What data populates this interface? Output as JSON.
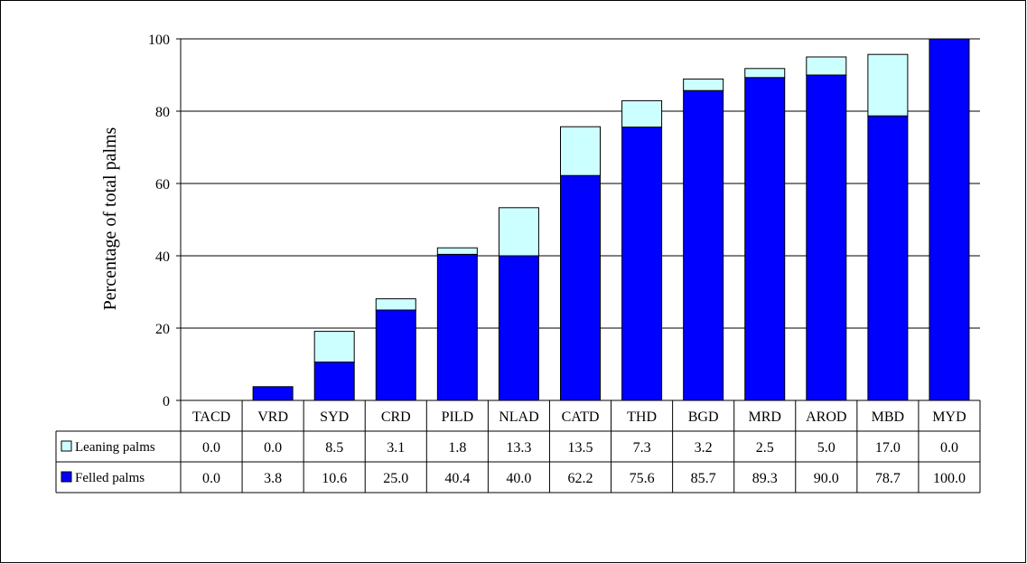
{
  "chart_data": {
    "type": "bar",
    "stacked": true,
    "title": "",
    "xlabel": "",
    "ylabel": "Percentage of total palms",
    "ylim": [
      0,
      100
    ],
    "yticks": [
      0,
      20,
      40,
      60,
      80,
      100
    ],
    "grid": true,
    "legend": "left of data table",
    "categories": [
      "TACD",
      "VRD",
      "SYD",
      "CRD",
      "PILD",
      "NLAD",
      "CATD",
      "THD",
      "BGD",
      "MRD",
      "AROD",
      "MBD",
      "MYD"
    ],
    "series": [
      {
        "name": "Felled palms",
        "color": "#0000ff",
        "values": [
          0.0,
          3.8,
          10.6,
          25.0,
          40.4,
          40.0,
          62.2,
          75.6,
          85.7,
          89.3,
          90.0,
          78.7,
          100.0
        ],
        "labels": [
          "0.0",
          "3.8",
          "10.6",
          "25.0",
          "40.4",
          "40.0",
          "62.2",
          "75.6",
          "85.7",
          "89.3",
          "90.0",
          "78.7",
          "100.0"
        ]
      },
      {
        "name": "Leaning palms",
        "color": "#ccffff",
        "values": [
          0.0,
          0.0,
          8.5,
          3.1,
          1.8,
          13.3,
          13.5,
          7.3,
          3.2,
          2.5,
          5.0,
          17.0,
          0.0
        ],
        "labels": [
          "0.0",
          "0.0",
          "8.5",
          "3.1",
          "1.8",
          "13.3",
          "13.5",
          "7.3",
          "3.2",
          "2.5",
          "5.0",
          "17.0",
          "0.0"
        ]
      }
    ],
    "table_row_order": [
      "Leaning palms",
      "Felled palms"
    ]
  }
}
